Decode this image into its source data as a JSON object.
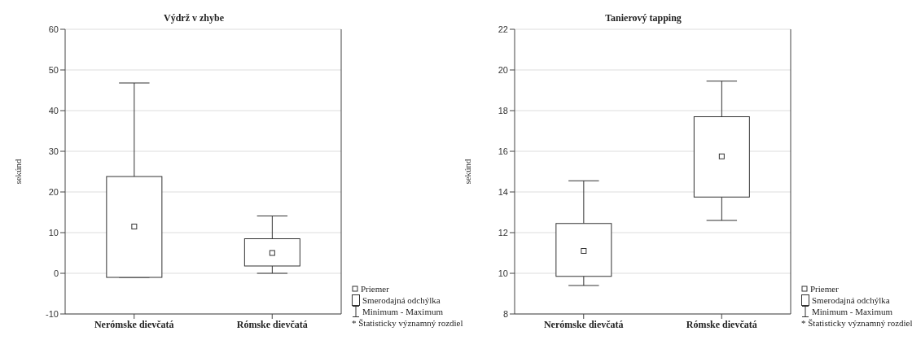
{
  "chart_data": [
    {
      "type": "box",
      "title": "Výdrž v zhybe",
      "ylabel": "sekúnd",
      "categories": [
        "Nerómske dievčatá",
        "Rómske dievčatá"
      ],
      "boxes": [
        {
          "low": -1,
          "q1": -1,
          "q3": 23.8,
          "high": 46.8,
          "mean": 11.5
        },
        {
          "low": 0,
          "q1": 1.8,
          "q3": 8.5,
          "high": 14.1,
          "mean": 5.0
        }
      ],
      "color": "#333333",
      "ylim": [
        -10,
        60
      ],
      "yticks": [
        -10,
        0,
        10,
        20,
        30,
        40,
        50,
        60
      ],
      "grid": "y",
      "marker": "square",
      "annotations": [
        "Priemer",
        "Smerodajná odchýlka",
        "Minimum - Maximum",
        "* Štatisticky významný rozdiel"
      ]
    },
    {
      "type": "box",
      "title": "Tanierový tapping",
      "ylabel": "sekúnd",
      "categories": [
        "Nerómske dievčatá",
        "Rómske dievčatá"
      ],
      "boxes": [
        {
          "low": 9.4,
          "q1": 9.85,
          "q3": 12.45,
          "high": 14.55,
          "mean": 11.1
        },
        {
          "low": 12.6,
          "q1": 13.75,
          "q3": 17.7,
          "high": 19.45,
          "mean": 15.75
        }
      ],
      "color": "#333333",
      "ylim": [
        8,
        22
      ],
      "yticks": [
        8,
        10,
        12,
        14,
        16,
        18,
        20,
        22
      ],
      "grid": "y",
      "marker": "square",
      "annotations": [
        "Priemer",
        "Smerodajná odchýlka",
        "Minimum - Maximum",
        "* Štatisticky významný rozdiel"
      ]
    }
  ]
}
